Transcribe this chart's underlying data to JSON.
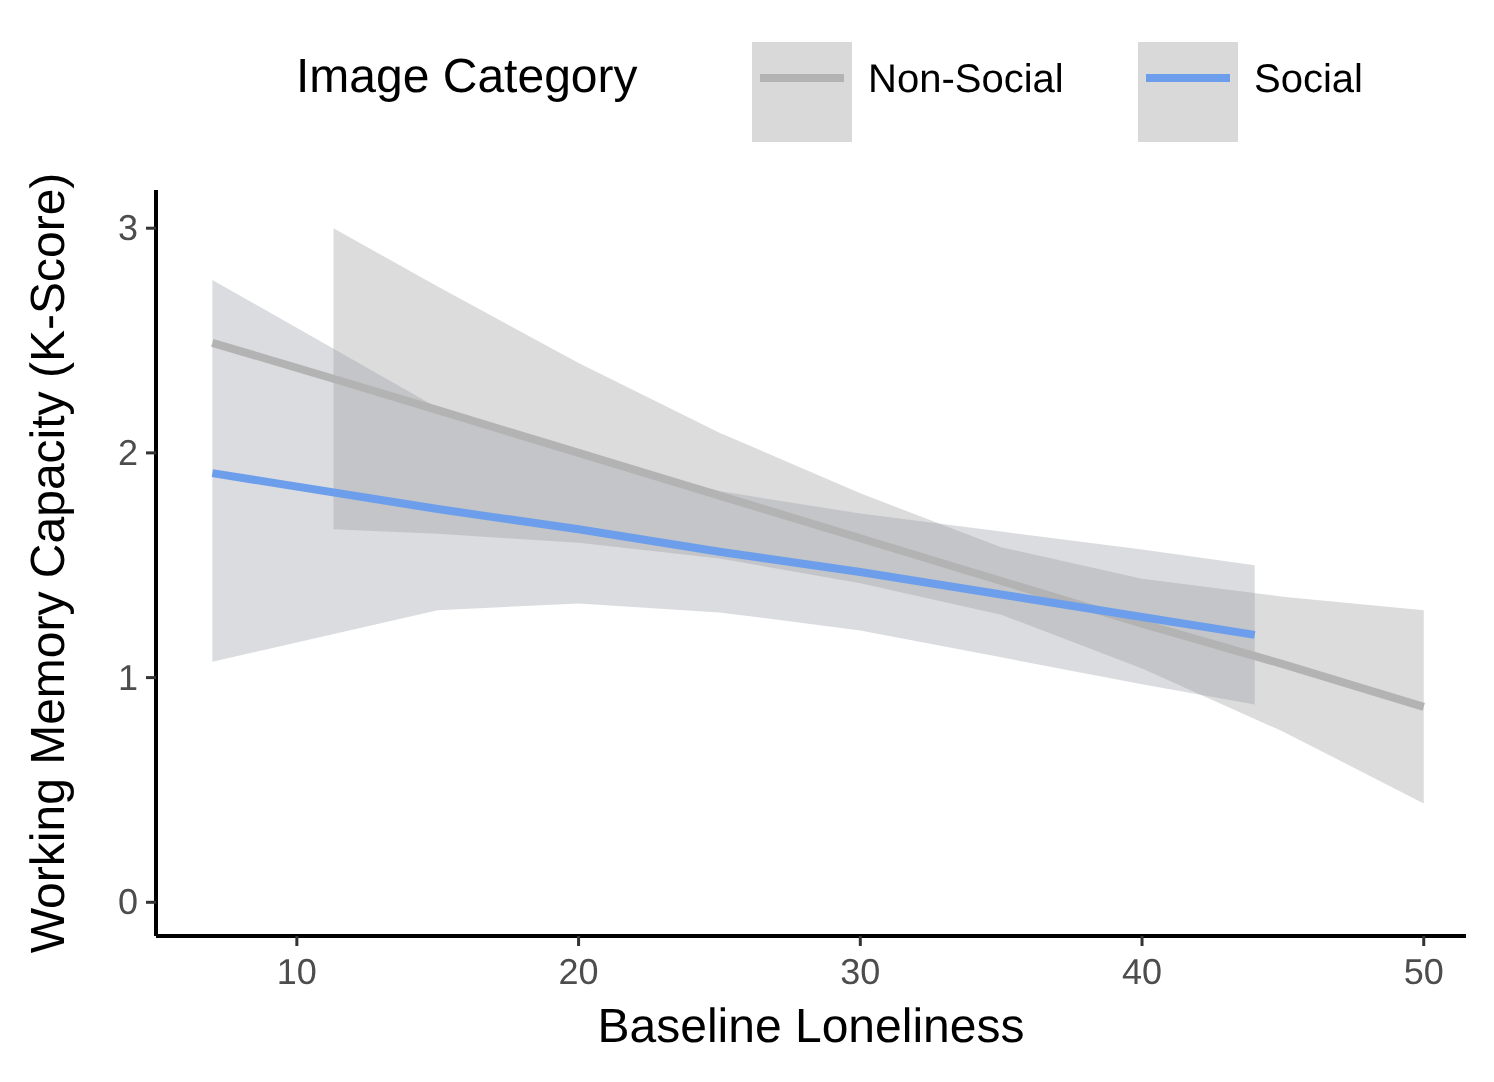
{
  "chart_data": {
    "type": "line",
    "xlabel": "Baseline Loneliness",
    "ylabel": "Working Memory Capacity (K-Score)",
    "legend_title": "Image Category",
    "legend": "top",
    "grid": false,
    "xlim": [
      5,
      51.5
    ],
    "xticks": [
      10,
      20,
      30,
      40,
      50
    ],
    "ylim": [
      -0.15,
      3.17
    ],
    "yticks": [
      0,
      1,
      2,
      3
    ],
    "series": [
      {
        "name": "Non-Social",
        "color": "#b3b3b3",
        "x": [
          7,
          11.3,
          15,
          20,
          25,
          30,
          35,
          40,
          45,
          50
        ],
        "values": [
          2.49,
          2.33,
          2.19,
          2.0,
          1.81,
          1.62,
          1.43,
          1.24,
          1.06,
          0.87
        ],
        "lower": [
          null,
          1.66,
          1.64,
          1.6,
          1.53,
          1.42,
          1.28,
          1.04,
          0.76,
          0.44
        ],
        "upper": [
          null,
          3.0,
          2.74,
          2.4,
          2.09,
          1.82,
          1.58,
          1.44,
          1.36,
          1.3
        ]
      },
      {
        "name": "Social",
        "color": "#6d9eeb",
        "x": [
          7,
          15,
          20,
          25,
          30,
          35,
          40,
          44
        ],
        "values": [
          1.91,
          1.75,
          1.66,
          1.56,
          1.47,
          1.37,
          1.27,
          1.19
        ],
        "lower": [
          1.07,
          1.3,
          1.33,
          1.29,
          1.21,
          1.09,
          0.97,
          0.88
        ],
        "upper": [
          2.77,
          2.2,
          1.99,
          1.83,
          1.73,
          1.65,
          1.57,
          1.5
        ]
      }
    ]
  }
}
